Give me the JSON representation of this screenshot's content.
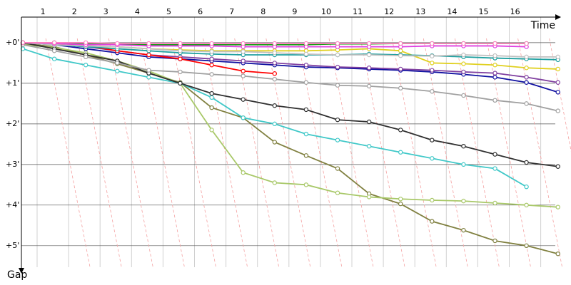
{
  "chart_data": {
    "type": "line",
    "x_label": "Time",
    "y_label": "Gap",
    "categories": [
      null,
      "1",
      "2",
      "3",
      "4",
      "5",
      "6",
      "7",
      "8",
      "9",
      "10",
      "11",
      "12",
      "13",
      "14",
      "15",
      "16",
      null
    ],
    "ylim": [
      -0.63,
      5.53
    ],
    "y_inverted": true,
    "yticks": [
      {
        "value": 0,
        "label": "+0'"
      },
      {
        "value": 1,
        "label": "+1'"
      },
      {
        "value": 2,
        "label": "+2'"
      },
      {
        "value": 3,
        "label": "+3'"
      },
      {
        "value": 4,
        "label": "+4'"
      },
      {
        "value": 5,
        "label": "+5'"
      }
    ],
    "grid": true,
    "series": [
      {
        "color": "#808040",
        "values": [
          0.02,
          0.1,
          0.3,
          0.52,
          0.75,
          0.98,
          1.6,
          1.85,
          2.45,
          2.78,
          3.1,
          3.72,
          3.97,
          4.4,
          4.62,
          4.88,
          5.0,
          5.2
        ]
      },
      {
        "color": "#a8c868",
        "values": [
          0.05,
          0.12,
          0.25,
          0.45,
          0.7,
          1.0,
          2.15,
          3.2,
          3.45,
          3.5,
          3.7,
          3.8,
          3.85,
          3.88,
          3.9,
          3.95,
          4.0,
          4.05
        ]
      },
      {
        "color": "#40c8c8",
        "values": [
          0.15,
          0.4,
          0.55,
          0.7,
          0.85,
          1.0,
          1.35,
          1.85,
          2.0,
          2.25,
          2.4,
          2.55,
          2.7,
          2.85,
          3.0,
          3.1,
          3.55,
          null
        ]
      },
      {
        "color": "#303030",
        "values": [
          0,
          0.15,
          0.3,
          0.45,
          0.75,
          1.0,
          1.25,
          1.4,
          1.55,
          1.65,
          1.9,
          1.95,
          2.15,
          2.4,
          2.55,
          2.75,
          2.95,
          3.05
        ]
      },
      {
        "color": "#a0a0a0",
        "values": [
          0.05,
          0.2,
          0.35,
          0.5,
          0.68,
          0.72,
          0.78,
          0.82,
          0.9,
          0.98,
          1.05,
          1.07,
          1.12,
          1.2,
          1.3,
          1.42,
          1.5,
          1.68
        ]
      },
      {
        "color": "#1010a0",
        "values": [
          0,
          0.05,
          0.15,
          0.25,
          0.35,
          0.4,
          0.45,
          0.5,
          0.55,
          0.6,
          0.62,
          0.65,
          0.68,
          0.72,
          0.78,
          0.85,
          0.98,
          1.22
        ]
      },
      {
        "color": "#8040a0",
        "values": [
          0,
          0.05,
          0.1,
          0.2,
          0.3,
          0.35,
          0.4,
          0.45,
          0.5,
          0.55,
          0.6,
          0.62,
          0.65,
          0.68,
          0.72,
          0.75,
          0.85,
          0.98
        ]
      },
      {
        "color": "#e0d020",
        "values": [
          0,
          0.05,
          0.08,
          0.1,
          0.15,
          0.18,
          0.2,
          0.2,
          0.2,
          0.2,
          0.18,
          0.15,
          0.2,
          0.5,
          0.52,
          0.55,
          0.62,
          0.65
        ]
      },
      {
        "color": "#ff0000",
        "values": [
          0,
          0.02,
          0.08,
          0.2,
          0.3,
          0.4,
          0.55,
          0.7,
          0.76,
          null,
          null,
          null,
          null,
          null,
          null,
          null,
          null,
          null
        ]
      },
      {
        "color": "#20a0a0",
        "values": [
          0,
          0.05,
          0.1,
          0.15,
          0.2,
          0.25,
          0.28,
          0.3,
          0.3,
          0.3,
          0.3,
          0.28,
          0.3,
          0.32,
          0.35,
          0.38,
          0.4,
          0.42
        ]
      },
      {
        "color": "#c0c0c0",
        "values": [
          0,
          0.05,
          0.08,
          0.1,
          0.15,
          0.2,
          0.22,
          0.22,
          0.25,
          0.28,
          0.3,
          0.3,
          0.32,
          0.33,
          0.3,
          0.32,
          0.35,
          0.35
        ]
      },
      {
        "color": "#10a010",
        "values": [
          0,
          0,
          0.02,
          0.03,
          0.05,
          0.05,
          0.05,
          0.05,
          0.05,
          0.05,
          0.03,
          0.03,
          0.02,
          0.02,
          0.02,
          0.02,
          0.02,
          null
        ]
      },
      {
        "color": "#e040e0",
        "values": [
          0,
          0.02,
          0.05,
          0.05,
          0.08,
          0.08,
          0.08,
          0.1,
          0.1,
          0.1,
          0.1,
          0.1,
          0.1,
          0.08,
          0.08,
          0.08,
          0.1,
          null
        ]
      },
      {
        "color": "#ff80c0",
        "values": [
          0,
          0,
          0,
          0.02,
          0.02,
          0.02,
          0.02,
          0.02,
          0.02,
          0.02,
          0.02,
          0.02,
          0.02,
          0.02,
          0.02,
          0.02,
          0.02,
          null
        ]
      }
    ]
  }
}
